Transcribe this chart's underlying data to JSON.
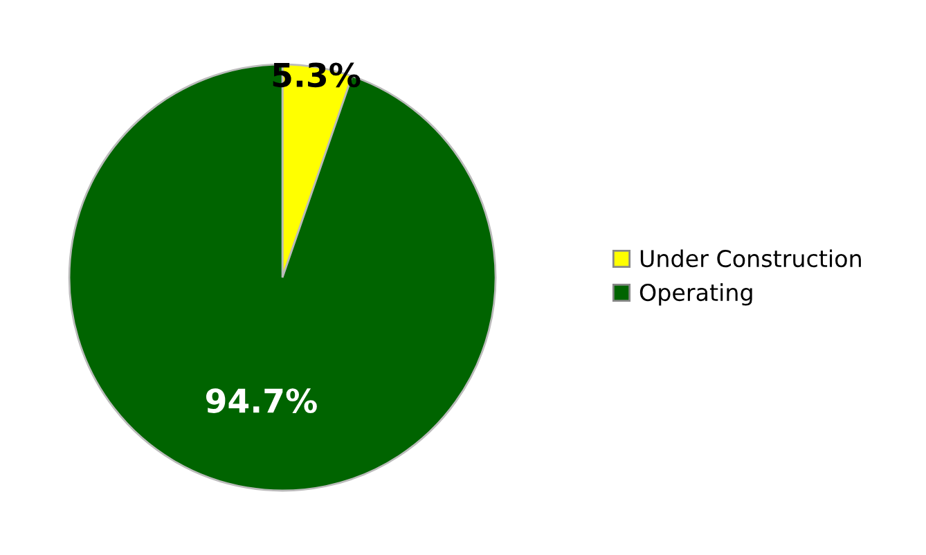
{
  "chart_data": {
    "type": "pie",
    "categories": [
      "Under Construction",
      "Operating"
    ],
    "values": [
      5.3,
      94.7
    ],
    "colors": [
      "#ffff00",
      "#006400"
    ],
    "value_labels": [
      "5.3%",
      "94.7%"
    ],
    "legend": "right"
  }
}
